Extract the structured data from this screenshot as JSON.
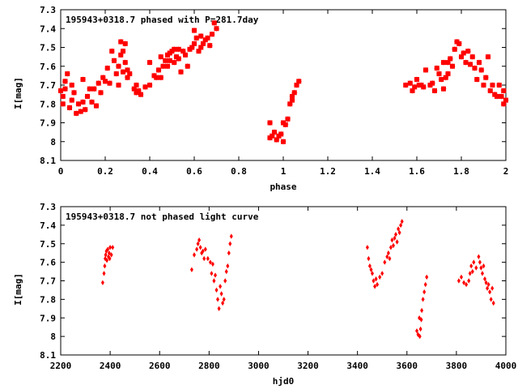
{
  "chart_data": [
    {
      "type": "scatter",
      "title": "195943+0318.7 phased with P=281.7day",
      "xlabel": "phase",
      "ylabel": "I[mag]",
      "xlim": [
        0,
        2
      ],
      "ylim": [
        8.1,
        7.3
      ],
      "y_inverted": true,
      "xticks": [
        "0",
        "0.2",
        "0.4",
        "0.6",
        "0.8",
        "1",
        "1.2",
        "1.4",
        "1.6",
        "1.8",
        "2"
      ],
      "yticks": [
        "7.3",
        "7.4",
        "7.5",
        "7.6",
        "7.7",
        "7.8",
        "7.9",
        "8",
        "8.1"
      ],
      "grid": false,
      "marker_color": "#ff0000",
      "series": [
        {
          "points": [
            [
              0.0,
              7.73
            ],
            [
              0.01,
              7.76
            ],
            [
              0.01,
              7.8
            ],
            [
              0.02,
              7.72
            ],
            [
              0.02,
              7.68
            ],
            [
              0.03,
              7.64
            ],
            [
              0.04,
              7.82
            ],
            [
              0.05,
              7.78
            ],
            [
              0.05,
              7.7
            ],
            [
              0.06,
              7.74
            ],
            [
              0.07,
              7.85
            ],
            [
              0.08,
              7.8
            ],
            [
              0.09,
              7.84
            ],
            [
              0.1,
              7.79
            ],
            [
              0.1,
              7.67
            ],
            [
              0.11,
              7.83
            ],
            [
              0.12,
              7.76
            ],
            [
              0.13,
              7.72
            ],
            [
              0.14,
              7.79
            ],
            [
              0.15,
              7.72
            ],
            [
              0.16,
              7.81
            ],
            [
              0.17,
              7.69
            ],
            [
              0.18,
              7.74
            ],
            [
              0.19,
              7.66
            ],
            [
              0.2,
              7.68
            ],
            [
              0.21,
              7.61
            ],
            [
              0.22,
              7.69
            ],
            [
              0.23,
              7.52
            ],
            [
              0.24,
              7.57
            ],
            [
              0.25,
              7.64
            ],
            [
              0.26,
              7.7
            ],
            [
              0.26,
              7.6
            ],
            [
              0.27,
              7.54
            ],
            [
              0.27,
              7.47
            ],
            [
              0.28,
              7.52
            ],
            [
              0.28,
              7.63
            ],
            [
              0.29,
              7.58
            ],
            [
              0.29,
              7.48
            ],
            [
              0.3,
              7.66
            ],
            [
              0.3,
              7.62
            ],
            [
              0.31,
              7.64
            ],
            [
              0.33,
              7.72
            ],
            [
              0.34,
              7.7
            ],
            [
              0.34,
              7.74
            ],
            [
              0.35,
              7.73
            ],
            [
              0.36,
              7.75
            ],
            [
              0.38,
              7.71
            ],
            [
              0.4,
              7.58
            ],
            [
              0.4,
              7.7
            ],
            [
              0.42,
              7.65
            ],
            [
              0.43,
              7.66
            ],
            [
              0.44,
              7.62
            ],
            [
              0.45,
              7.66
            ],
            [
              0.45,
              7.55
            ],
            [
              0.46,
              7.6
            ],
            [
              0.47,
              7.57
            ],
            [
              0.48,
              7.54
            ],
            [
              0.48,
              7.6
            ],
            [
              0.49,
              7.53
            ],
            [
              0.49,
              7.57
            ],
            [
              0.5,
              7.52
            ],
            [
              0.51,
              7.51
            ],
            [
              0.51,
              7.58
            ],
            [
              0.52,
              7.55
            ],
            [
              0.53,
              7.51
            ],
            [
              0.53,
              7.56
            ],
            [
              0.54,
              7.63
            ],
            [
              0.55,
              7.52
            ],
            [
              0.56,
              7.54
            ],
            [
              0.57,
              7.6
            ],
            [
              0.58,
              7.51
            ],
            [
              0.59,
              7.5
            ],
            [
              0.6,
              7.48
            ],
            [
              0.6,
              7.41
            ],
            [
              0.61,
              7.45
            ],
            [
              0.62,
              7.52
            ],
            [
              0.63,
              7.5
            ],
            [
              0.63,
              7.44
            ],
            [
              0.64,
              7.48
            ],
            [
              0.65,
              7.46
            ],
            [
              0.66,
              7.45
            ],
            [
              0.67,
              7.49
            ],
            [
              0.68,
              7.43
            ],
            [
              0.69,
              7.37
            ],
            [
              0.7,
              7.4
            ],
            [
              0.94,
              7.9
            ],
            [
              0.94,
              7.98
            ],
            [
              0.95,
              7.97
            ],
            [
              0.96,
              7.95
            ],
            [
              0.97,
              7.99
            ],
            [
              0.98,
              7.97
            ],
            [
              0.99,
              7.96
            ],
            [
              1.0,
              7.9
            ],
            [
              1.0,
              8.0
            ],
            [
              1.01,
              7.91
            ],
            [
              1.02,
              7.88
            ],
            [
              1.03,
              7.8
            ],
            [
              1.04,
              7.76
            ],
            [
              1.04,
              7.78
            ],
            [
              1.05,
              7.74
            ],
            [
              1.06,
              7.7
            ],
            [
              1.07,
              7.68
            ],
            [
              1.55,
              7.7
            ],
            [
              1.57,
              7.69
            ],
            [
              1.58,
              7.73
            ],
            [
              1.59,
              7.71
            ],
            [
              1.6,
              7.67
            ],
            [
              1.61,
              7.7
            ],
            [
              1.62,
              7.7
            ],
            [
              1.63,
              7.71
            ],
            [
              1.64,
              7.62
            ],
            [
              1.66,
              7.7
            ],
            [
              1.67,
              7.69
            ],
            [
              1.68,
              7.73
            ],
            [
              1.69,
              7.61
            ],
            [
              1.7,
              7.64
            ],
            [
              1.71,
              7.67
            ],
            [
              1.72,
              7.72
            ],
            [
              1.72,
              7.58
            ],
            [
              1.73,
              7.66
            ],
            [
              1.74,
              7.58
            ],
            [
              1.74,
              7.64
            ],
            [
              1.75,
              7.56
            ],
            [
              1.76,
              7.6
            ],
            [
              1.77,
              7.51
            ],
            [
              1.78,
              7.47
            ],
            [
              1.79,
              7.48
            ],
            [
              1.8,
              7.55
            ],
            [
              1.81,
              7.53
            ],
            [
              1.82,
              7.58
            ],
            [
              1.83,
              7.52
            ],
            [
              1.84,
              7.59
            ],
            [
              1.85,
              7.55
            ],
            [
              1.86,
              7.61
            ],
            [
              1.87,
              7.67
            ],
            [
              1.88,
              7.58
            ],
            [
              1.89,
              7.62
            ],
            [
              1.9,
              7.7
            ],
            [
              1.91,
              7.66
            ],
            [
              1.92,
              7.55
            ],
            [
              1.93,
              7.73
            ],
            [
              1.94,
              7.7
            ],
            [
              1.95,
              7.75
            ],
            [
              1.96,
              7.76
            ],
            [
              1.97,
              7.7
            ],
            [
              1.98,
              7.76
            ],
            [
              1.99,
              7.8
            ],
            [
              1.99,
              7.73
            ],
            [
              2.0,
              7.78
            ]
          ]
        }
      ]
    },
    {
      "type": "scatter",
      "title": "195943+0318.7 not phased light curve",
      "xlabel": "hjd0",
      "ylabel": "I[mag]",
      "xlim": [
        2200,
        4000
      ],
      "ylim": [
        8.1,
        7.3
      ],
      "y_inverted": true,
      "xticks": [
        "2200",
        "2400",
        "2600",
        "2800",
        "3000",
        "3200",
        "3400",
        "3600",
        "3800",
        "4000"
      ],
      "yticks": [
        "7.3",
        "7.4",
        "7.5",
        "7.6",
        "7.7",
        "7.8",
        "7.9",
        "8",
        "8.1"
      ],
      "grid": false,
      "marker_color": "#ff0000",
      "series": [
        {
          "points": [
            [
              2370,
              7.71
            ],
            [
              2375,
              7.66
            ],
            [
              2378,
              7.62
            ],
            [
              2380,
              7.58
            ],
            [
              2382,
              7.56
            ],
            [
              2385,
              7.54
            ],
            [
              2387,
              7.59
            ],
            [
              2390,
              7.53
            ],
            [
              2393,
              7.57
            ],
            [
              2396,
              7.55
            ],
            [
              2398,
              7.58
            ],
            [
              2400,
              7.52
            ],
            [
              2405,
              7.56
            ],
            [
              2410,
              7.52
            ],
            [
              2730,
              7.64
            ],
            [
              2740,
              7.56
            ],
            [
              2750,
              7.53
            ],
            [
              2755,
              7.5
            ],
            [
              2760,
              7.48
            ],
            [
              2765,
              7.52
            ],
            [
              2770,
              7.55
            ],
            [
              2775,
              7.54
            ],
            [
              2780,
              7.58
            ],
            [
              2785,
              7.53
            ],
            [
              2795,
              7.58
            ],
            [
              2805,
              7.6
            ],
            [
              2810,
              7.66
            ],
            [
              2815,
              7.61
            ],
            [
              2820,
              7.7
            ],
            [
              2825,
              7.67
            ],
            [
              2830,
              7.75
            ],
            [
              2835,
              7.8
            ],
            [
              2840,
              7.85
            ],
            [
              2845,
              7.73
            ],
            [
              2850,
              7.77
            ],
            [
              2855,
              7.82
            ],
            [
              2860,
              7.8
            ],
            [
              2865,
              7.7
            ],
            [
              2870,
              7.65
            ],
            [
              2875,
              7.62
            ],
            [
              2880,
              7.55
            ],
            [
              2885,
              7.5
            ],
            [
              2890,
              7.46
            ],
            [
              3440,
              7.52
            ],
            [
              3445,
              7.58
            ],
            [
              3450,
              7.62
            ],
            [
              3455,
              7.64
            ],
            [
              3460,
              7.66
            ],
            [
              3465,
              7.7
            ],
            [
              3470,
              7.73
            ],
            [
              3475,
              7.69
            ],
            [
              3480,
              7.72
            ],
            [
              3490,
              7.68
            ],
            [
              3500,
              7.66
            ],
            [
              3510,
              7.6
            ],
            [
              3520,
              7.57
            ],
            [
              3525,
              7.55
            ],
            [
              3530,
              7.58
            ],
            [
              3535,
              7.52
            ],
            [
              3540,
              7.48
            ],
            [
              3545,
              7.51
            ],
            [
              3550,
              7.47
            ],
            [
              3555,
              7.45
            ],
            [
              3560,
              7.49
            ],
            [
              3565,
              7.42
            ],
            [
              3570,
              7.44
            ],
            [
              3575,
              7.4
            ],
            [
              3580,
              7.38
            ],
            [
              3640,
              7.97
            ],
            [
              3645,
              7.99
            ],
            [
              3650,
              7.9
            ],
            [
              3652,
              8.0
            ],
            [
              3655,
              7.96
            ],
            [
              3658,
              7.91
            ],
            [
              3660,
              7.86
            ],
            [
              3665,
              7.8
            ],
            [
              3670,
              7.76
            ],
            [
              3675,
              7.72
            ],
            [
              3680,
              7.68
            ],
            [
              3810,
              7.7
            ],
            [
              3820,
              7.68
            ],
            [
              3830,
              7.71
            ],
            [
              3840,
              7.72
            ],
            [
              3850,
              7.7
            ],
            [
              3855,
              7.66
            ],
            [
              3860,
              7.62
            ],
            [
              3865,
              7.65
            ],
            [
              3870,
              7.6
            ],
            [
              3880,
              7.63
            ],
            [
              3890,
              7.57
            ],
            [
              3895,
              7.6
            ],
            [
              3900,
              7.63
            ],
            [
              3905,
              7.66
            ],
            [
              3910,
              7.62
            ],
            [
              3915,
              7.69
            ],
            [
              3920,
              7.71
            ],
            [
              3925,
              7.74
            ],
            [
              3930,
              7.72
            ],
            [
              3935,
              7.76
            ],
            [
              3940,
              7.8
            ],
            [
              3945,
              7.74
            ],
            [
              3950,
              7.82
            ]
          ]
        }
      ]
    }
  ]
}
